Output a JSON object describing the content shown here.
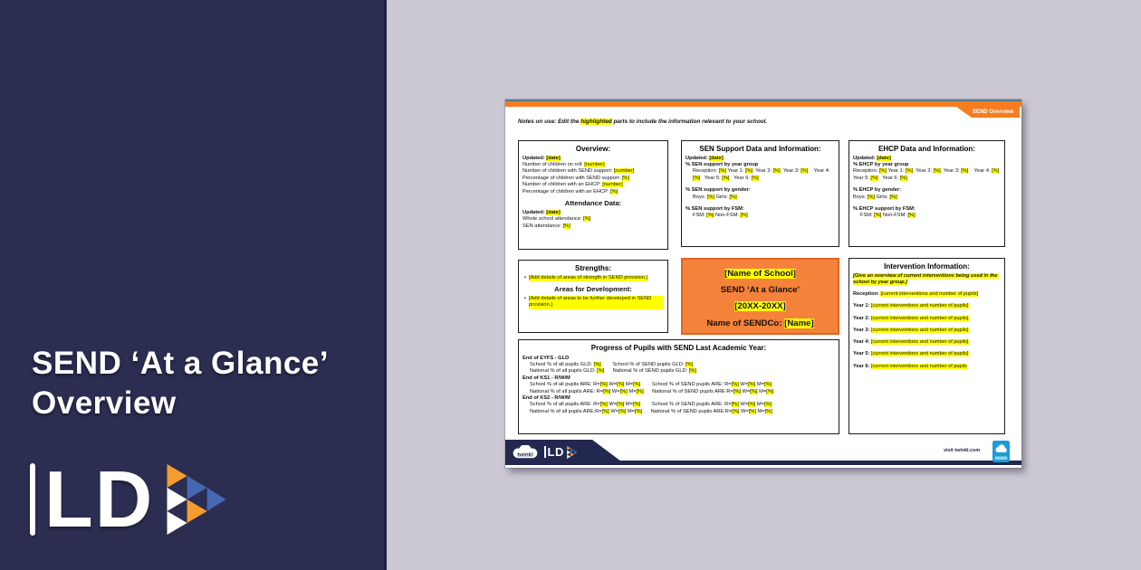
{
  "colors": {
    "navy_panel": "#2b2d51",
    "banner_navy": "#232850",
    "lavender_bg": "#cbc7d3",
    "orange": "#f57d20",
    "school_box_fill": "#f5823a",
    "school_box_border": "#e2621f",
    "highlight_yellow": "#ffff00",
    "logo_blue": "#4667b1",
    "logo_orange": "#f59c2e",
    "badge_blue": "#1b9cd8"
  },
  "left_panel": {
    "title_line1": "SEND ‘At a Glance’",
    "title_line2": "Overview",
    "logo_text": "LD"
  },
  "doc": {
    "tab_label": "SEND Overview",
    "notes": [
      {
        "t": "Notes on use: Edit the ",
        "s": "bi"
      },
      {
        "t": "highlighted",
        "s": "bihl"
      },
      {
        "t": " parts to include the information relevant to your school.",
        "s": "bi"
      }
    ],
    "overview": {
      "title": "Overview:",
      "lines": [
        {
          "segs": [
            {
              "t": "Updated: ",
              "s": "b"
            },
            {
              "t": "[date]",
              "s": "bhl"
            }
          ]
        },
        {
          "segs": [
            {
              "t": "Number of children on roll: ",
              "s": ""
            },
            {
              "t": "[number]",
              "s": "hl"
            }
          ]
        },
        {
          "segs": [
            {
              "t": "Number of children with SEND support: ",
              "s": ""
            },
            {
              "t": "[number]",
              "s": "hl"
            }
          ]
        },
        {
          "segs": [
            {
              "t": "Percentage of children with SEND support: ",
              "s": ""
            },
            {
              "t": "[%]",
              "s": "hl"
            }
          ]
        },
        {
          "segs": [
            {
              "t": "Number of children with an EHCP: ",
              "s": ""
            },
            {
              "t": "[number]",
              "s": "hl"
            }
          ]
        },
        {
          "segs": [
            {
              "t": "Percentage of children with an EHCP: ",
              "s": ""
            },
            {
              "t": "[%]",
              "s": "hl"
            }
          ]
        }
      ],
      "subtitle": "Attendance Data:",
      "lines2": [
        {
          "segs": [
            {
              "t": "Updated: ",
              "s": "b"
            },
            {
              "t": "[date]",
              "s": "bhl"
            }
          ]
        },
        {
          "segs": [
            {
              "t": "Whole school attendance: ",
              "s": ""
            },
            {
              "t": "[%]",
              "s": "hl"
            }
          ]
        },
        {
          "segs": [
            {
              "t": "SEN attendance: ",
              "s": ""
            },
            {
              "t": "[%]",
              "s": "hl"
            }
          ]
        }
      ]
    },
    "sen": {
      "title": "SEN Support Data and Information:",
      "lines": [
        {
          "segs": [
            {
              "t": "Updated: ",
              "s": "b"
            },
            {
              "t": "[date]",
              "s": "bhl"
            }
          ]
        },
        {
          "segs": [
            {
              "t": "% SEN support by year group",
              "s": "b"
            }
          ]
        },
        {
          "cls": "ind",
          "segs": [
            {
              "t": "Reception: ",
              "s": ""
            },
            {
              "t": "[%]",
              "s": "hl"
            },
            {
              "t": " Year 1: ",
              "s": ""
            },
            {
              "t": "[%]",
              "s": "hl"
            },
            {
              "t": "  Year 2: ",
              "s": ""
            },
            {
              "t": "[%]",
              "s": "hl"
            },
            {
              "t": "  Year 3: ",
              "s": ""
            },
            {
              "t": "[%]",
              "s": "hl"
            },
            {
              "t": "    Year 4: ",
              "s": ""
            },
            {
              "t": "[%]",
              "s": "hl"
            },
            {
              "t": "   Year 5: ",
              "s": ""
            },
            {
              "t": "[%]",
              "s": "hl"
            },
            {
              "t": "   Year 6: ",
              "s": ""
            },
            {
              "t": "[%]",
              "s": "hl"
            }
          ]
        },
        {
          "cls": "gap"
        },
        {
          "segs": [
            {
              "t": "% SEN support by gender:",
              "s": "b"
            }
          ]
        },
        {
          "cls": "ind",
          "segs": [
            {
              "t": "Boys: ",
              "s": ""
            },
            {
              "t": "[%]",
              "s": "hl"
            },
            {
              "t": " Girls: ",
              "s": ""
            },
            {
              "t": "[%]",
              "s": "hl"
            }
          ]
        },
        {
          "cls": "gap"
        },
        {
          "segs": [
            {
              "t": "% SEN support by FSM:",
              "s": "b"
            }
          ]
        },
        {
          "cls": "ind",
          "segs": [
            {
              "t": "FSM: ",
              "s": ""
            },
            {
              "t": "[%]",
              "s": "hl"
            },
            {
              "t": " Non-FSM: ",
              "s": ""
            },
            {
              "t": "[%]",
              "s": "hl"
            }
          ]
        }
      ]
    },
    "ehcp": {
      "title": "EHCP Data and Information:",
      "lines": [
        {
          "segs": [
            {
              "t": "Updated: ",
              "s": "b"
            },
            {
              "t": "[date]",
              "s": "bhl"
            }
          ]
        },
        {
          "segs": [
            {
              "t": "% EHCP by year group",
              "s": "b"
            }
          ]
        },
        {
          "segs": [
            {
              "t": "Reception: ",
              "s": ""
            },
            {
              "t": "[%]",
              "s": "hl"
            },
            {
              "t": " Year 1: ",
              "s": ""
            },
            {
              "t": "[%]",
              "s": "hl"
            },
            {
              "t": "  Year 2: ",
              "s": ""
            },
            {
              "t": "[%]",
              "s": "hl"
            },
            {
              "t": "  Year 3: ",
              "s": ""
            },
            {
              "t": "[%]",
              "s": "hl"
            },
            {
              "t": "    Year 4: ",
              "s": ""
            },
            {
              "t": "[%]",
              "s": "hl"
            },
            {
              "t": "   Year 5: ",
              "s": ""
            },
            {
              "t": "[%]",
              "s": "hl"
            },
            {
              "t": "   Year 6: ",
              "s": ""
            },
            {
              "t": "[%]",
              "s": "hl"
            }
          ]
        },
        {
          "cls": "gap"
        },
        {
          "segs": [
            {
              "t": "% EHCP by gender:",
              "s": "b"
            }
          ]
        },
        {
          "segs": [
            {
              "t": "Boys: ",
              "s": ""
            },
            {
              "t": "[%]",
              "s": "hl"
            },
            {
              "t": " Girls: ",
              "s": ""
            },
            {
              "t": "[%]",
              "s": "hl"
            }
          ]
        },
        {
          "cls": "gap"
        },
        {
          "segs": [
            {
              "t": "% EHCP support by FSM:",
              "s": "b"
            }
          ]
        },
        {
          "cls": "ind",
          "segs": [
            {
              "t": "FSM: ",
              "s": ""
            },
            {
              "t": "[%]",
              "s": "hl"
            },
            {
              "t": " Non-FSM: ",
              "s": ""
            },
            {
              "t": "[%]",
              "s": "hl"
            }
          ]
        }
      ]
    },
    "strengths": {
      "title": "Strengths:",
      "bullet1": [
        {
          "t": "[Add details of areas of strength in SEND provision.]",
          "s": "hl"
        }
      ],
      "subtitle": "Areas for Development:",
      "bullet2": [
        {
          "t": "[Add details of areas to be further developed in SEND provision.]",
          "s": "hl"
        }
      ]
    },
    "school": {
      "lines": [
        {
          "segs": [
            {
              "t": "[Name of School]",
              "s": "bhl"
            }
          ]
        },
        {
          "segs": [
            {
              "t": "SEND ‘At a Glance’",
              "s": "b"
            }
          ]
        },
        {
          "segs": [
            {
              "t": "[20XX-20XX]",
              "s": "bhl"
            }
          ]
        },
        {
          "segs": [
            {
              "t": "Name of SENDCo: ",
              "s": "b"
            },
            {
              "t": "[Name]",
              "s": "bhl"
            }
          ]
        }
      ]
    },
    "intervention": {
      "title": "Intervention Information:",
      "lines": [
        {
          "segs": [
            {
              "t": "[Give an overview of current interventions being used in the school by year group.]",
              "s": "bihl"
            }
          ]
        },
        {
          "cls": "gap"
        },
        {
          "segs": [
            {
              "t": "Reception: ",
              "s": "b"
            },
            {
              "t": "[current interventions and number of pupils]",
              "s": "hl"
            }
          ]
        },
        {
          "cls": "gap"
        },
        {
          "segs": [
            {
              "t": "Year 1: ",
              "s": "b"
            },
            {
              "t": "[current interventions and number of pupils]",
              "s": "hl"
            }
          ]
        },
        {
          "cls": "gap"
        },
        {
          "segs": [
            {
              "t": "Year 2: ",
              "s": "b"
            },
            {
              "t": "[current interventions and number of pupils]",
              "s": "hl"
            }
          ]
        },
        {
          "cls": "gap"
        },
        {
          "segs": [
            {
              "t": "Year 3: ",
              "s": "b"
            },
            {
              "t": "[current interventions and number of pupils]",
              "s": "hl"
            }
          ]
        },
        {
          "cls": "gap"
        },
        {
          "segs": [
            {
              "t": "Year 4: ",
              "s": "b"
            },
            {
              "t": "[current interventions and number of pupils]",
              "s": "hl"
            }
          ]
        },
        {
          "cls": "gap"
        },
        {
          "segs": [
            {
              "t": "Year 5: ",
              "s": "b"
            },
            {
              "t": "[current interventions and number of pupils]",
              "s": "hl"
            }
          ]
        },
        {
          "cls": "gap"
        },
        {
          "segs": [
            {
              "t": "Year 6: ",
              "s": "b"
            },
            {
              "t": "[current interventions and number of pupils",
              "s": "hl"
            }
          ]
        }
      ]
    },
    "progress": {
      "title": "Progress of Pupils with SEND Last Academic Year:",
      "lines": [
        {
          "segs": [
            {
              "t": "End of EYFS - GLD",
              "s": "b"
            }
          ]
        },
        {
          "cls": "ind",
          "segs": [
            {
              "t": "School % of all pupils GLD: ",
              "s": ""
            },
            {
              "t": "[%]",
              "s": "hl"
            },
            {
              "t": "        School % of SEND pupils GLD: ",
              "s": ""
            },
            {
              "t": "[%]",
              "s": "hl"
            }
          ]
        },
        {
          "cls": "ind",
          "segs": [
            {
              "t": "National % of all pupils GLD: ",
              "s": ""
            },
            {
              "t": "[%]",
              "s": "hl"
            },
            {
              "t": "      National % of SEND pupils GLD: ",
              "s": ""
            },
            {
              "t": "[%]",
              "s": "hl"
            }
          ]
        },
        {
          "segs": [
            {
              "t": "End of KS1 - R/W/M",
              "s": "b"
            }
          ]
        },
        {
          "cls": "ind",
          "segs": [
            {
              "t": "School % of all pupils ARE: R=",
              "s": ""
            },
            {
              "t": "[%]",
              "s": "hl"
            },
            {
              "t": " W=",
              "s": ""
            },
            {
              "t": "[%]",
              "s": "hl"
            },
            {
              "t": " M=",
              "s": ""
            },
            {
              "t": "[%]",
              "s": "hl"
            },
            {
              "t": "        School % of SEND pupils ARE: R=",
              "s": ""
            },
            {
              "t": "[%]",
              "s": "hl"
            },
            {
              "t": " W=",
              "s": ""
            },
            {
              "t": "[%]",
              "s": "hl"
            },
            {
              "t": " M=",
              "s": ""
            },
            {
              "t": "[%]",
              "s": "hl"
            }
          ]
        },
        {
          "cls": "ind",
          "segs": [
            {
              "t": "National % of all pupils ARE: R=",
              "s": ""
            },
            {
              "t": "[%]",
              "s": "hl"
            },
            {
              "t": " W=",
              "s": ""
            },
            {
              "t": "[%]",
              "s": "hl"
            },
            {
              "t": " M=",
              "s": ""
            },
            {
              "t": "[%]",
              "s": "hl"
            },
            {
              "t": "      National % of SEND pupils ARE:R=",
              "s": ""
            },
            {
              "t": "[%]",
              "s": "hl"
            },
            {
              "t": " W=",
              "s": ""
            },
            {
              "t": "[%]",
              "s": "hl"
            },
            {
              "t": " M=",
              "s": ""
            },
            {
              "t": "[%]",
              "s": "hl"
            }
          ]
        },
        {
          "segs": [
            {
              "t": "End of KS2 - R/W/M",
              "s": "b"
            }
          ]
        },
        {
          "cls": "ind",
          "segs": [
            {
              "t": "School % of all pupils ARE: R=",
              "s": ""
            },
            {
              "t": "[%]",
              "s": "hl"
            },
            {
              "t": " W=",
              "s": ""
            },
            {
              "t": "[%]",
              "s": "hl"
            },
            {
              "t": " M=",
              "s": ""
            },
            {
              "t": "[%]",
              "s": "hl"
            },
            {
              "t": "        School % of SEND pupils ARE: R=",
              "s": ""
            },
            {
              "t": "[%]",
              "s": "hl"
            },
            {
              "t": " W=",
              "s": ""
            },
            {
              "t": "[%]",
              "s": "hl"
            },
            {
              "t": " M=",
              "s": ""
            },
            {
              "t": "[%]",
              "s": "hl"
            }
          ]
        },
        {
          "cls": "ind",
          "segs": [
            {
              "t": "National % of all pupils ARE:R=",
              "s": ""
            },
            {
              "t": "[%]",
              "s": "hl"
            },
            {
              "t": " W=",
              "s": ""
            },
            {
              "t": "[%]",
              "s": "hl"
            },
            {
              "t": " M=",
              "s": ""
            },
            {
              "t": "[%]",
              "s": "hl"
            },
            {
              "t": "      National % of SEND pupils ARE:R=",
              "s": ""
            },
            {
              "t": "[%]",
              "s": "hl"
            },
            {
              "t": " W=",
              "s": ""
            },
            {
              "t": "[%]",
              "s": "hl"
            },
            {
              "t": " M=",
              "s": ""
            },
            {
              "t": "[%]",
              "s": "hl"
            }
          ]
        }
      ]
    },
    "footer": {
      "twinkl_label": "twinkl",
      "ld_label": "LD",
      "visit_label": "visit twinkl.com"
    }
  }
}
